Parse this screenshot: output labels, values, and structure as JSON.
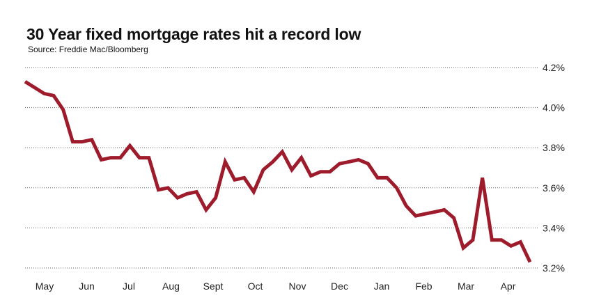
{
  "chart_data": {
    "type": "line",
    "title": "30 Year fixed mortgage rates hit a record low",
    "subtitle": "Source: Freddie Mac/Bloomberg",
    "ylim": [
      3.2,
      4.2
    ],
    "y_ticks": [
      "4.2%",
      "4.0%",
      "3.8%",
      "3.6%",
      "3.4%",
      "3.2%"
    ],
    "y_tick_values": [
      4.2,
      4.0,
      3.8,
      3.6,
      3.4,
      3.2
    ],
    "x_ticks": [
      "May",
      "Jun",
      "Jul",
      "Aug",
      "Sept",
      "Oct",
      "Nov",
      "Dec",
      "Jan",
      "Feb",
      "Mar",
      "Apr"
    ],
    "grid": "horizontal dotted",
    "line_color": "#9e1b2c",
    "series": [
      {
        "values": [
          4.13,
          4.1,
          4.07,
          4.06,
          3.99,
          3.83,
          3.83,
          3.84,
          3.74,
          3.75,
          3.75,
          3.81,
          3.75,
          3.75,
          3.59,
          3.6,
          3.55,
          3.57,
          3.58,
          3.49,
          3.55,
          3.73,
          3.64,
          3.65,
          3.58,
          3.69,
          3.73,
          3.78,
          3.69,
          3.75,
          3.66,
          3.68,
          3.68,
          3.72,
          3.73,
          3.74,
          3.72,
          3.65,
          3.65,
          3.6,
          3.51,
          3.46,
          3.47,
          3.48,
          3.49,
          3.45,
          3.3,
          3.34,
          3.65,
          3.34,
          3.34,
          3.31,
          3.33,
          3.23
        ]
      }
    ]
  }
}
